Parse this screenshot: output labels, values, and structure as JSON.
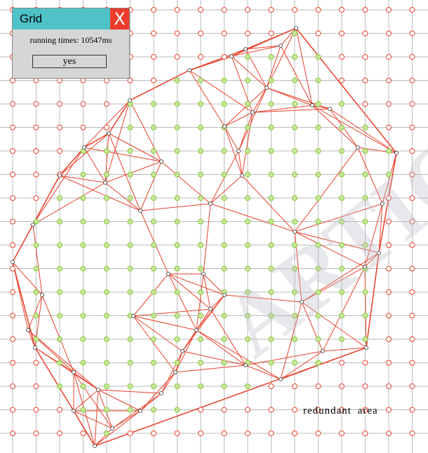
{
  "dialog": {
    "title": "Grid",
    "close": "X",
    "message": "running times: 10547ms",
    "button": "yes"
  },
  "area_label": "redundant area",
  "watermark": "ARTICLE"
}
